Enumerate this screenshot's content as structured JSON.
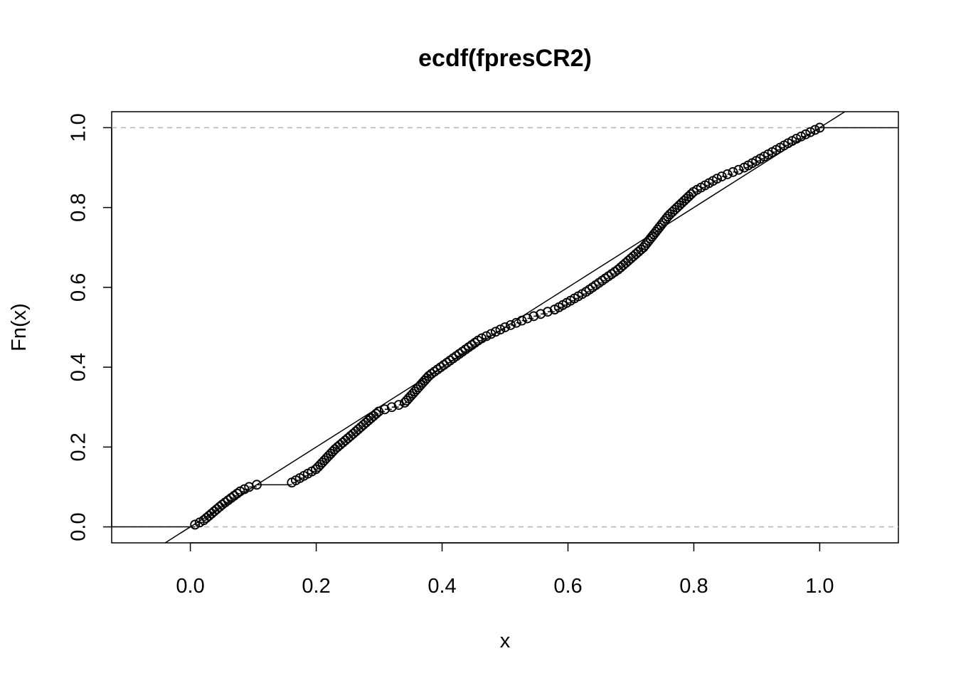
{
  "chart_data": {
    "type": "scatter",
    "title": "ecdf(fpresCR2)",
    "xlabel": "x",
    "ylabel": "Fn(x)",
    "xlim": [
      -0.125,
      1.125
    ],
    "ylim": [
      -0.04,
      1.04
    ],
    "x_ticks": [
      "0.0",
      "0.2",
      "0.4",
      "0.6",
      "0.8",
      "1.0"
    ],
    "y_ticks": [
      "0.0",
      "0.2",
      "0.4",
      "0.6",
      "0.8",
      "1.0"
    ],
    "grid": false,
    "legend": "none",
    "reference_lines": [
      {
        "kind": "horizontal",
        "y": 0,
        "style": "dashed",
        "color": "#b3b3b3"
      },
      {
        "kind": "horizontal",
        "y": 1,
        "style": "dashed",
        "color": "#b3b3b3"
      },
      {
        "kind": "diagonal",
        "from": [
          0,
          0
        ],
        "to": [
          1,
          1
        ],
        "style": "solid",
        "color": "#000000"
      }
    ],
    "n_points": 180,
    "knots": [
      [
        0.0,
        0.0
      ],
      [
        0.02,
        0.015
      ],
      [
        0.05,
        0.055
      ],
      [
        0.08,
        0.09
      ],
      [
        0.1,
        0.105
      ],
      [
        0.12,
        0.107
      ],
      [
        0.16,
        0.11
      ],
      [
        0.2,
        0.145
      ],
      [
        0.23,
        0.195
      ],
      [
        0.26,
        0.235
      ],
      [
        0.3,
        0.29
      ],
      [
        0.34,
        0.31
      ],
      [
        0.38,
        0.38
      ],
      [
        0.42,
        0.425
      ],
      [
        0.46,
        0.47
      ],
      [
        0.5,
        0.5
      ],
      [
        0.54,
        0.525
      ],
      [
        0.58,
        0.545
      ],
      [
        0.63,
        0.59
      ],
      [
        0.68,
        0.645
      ],
      [
        0.72,
        0.7
      ],
      [
        0.76,
        0.78
      ],
      [
        0.8,
        0.84
      ],
      [
        0.84,
        0.875
      ],
      [
        0.88,
        0.9
      ],
      [
        0.92,
        0.935
      ],
      [
        0.96,
        0.97
      ],
      [
        1.0,
        1.0
      ]
    ],
    "marker": "open-circle"
  }
}
